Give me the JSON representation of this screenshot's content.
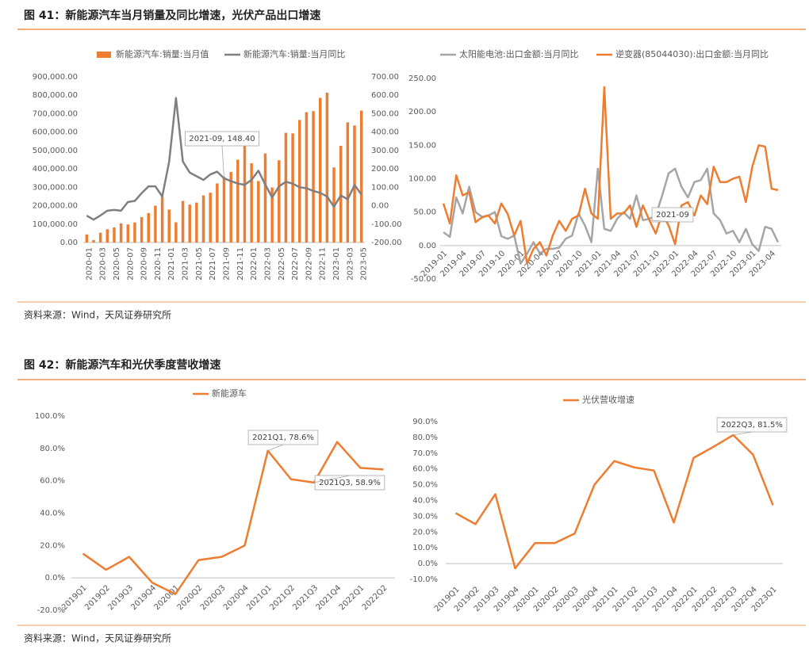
{
  "header": {
    "title": "图 41：新能源汽车当月销量及同比增速，光伏产品出口增速",
    "source": "资料来源：Wind，天风证券研究所"
  },
  "header2": {
    "title": "图 42：新能源汽车和光伏季度营收增速",
    "source": "资料来源：Wind，天风证券研究所"
  },
  "chart_data": [
    {
      "type": "bar",
      "categories": [
        "2020-01",
        null,
        "2020-03",
        null,
        "2020-05",
        null,
        "2020-07",
        null,
        "2020-09",
        null,
        "2020-11",
        null,
        "2021-01",
        null,
        "2021-03",
        null,
        "2021-05",
        null,
        "2021-07",
        null,
        "2021-09",
        null,
        "2021-11",
        null,
        "2022-01",
        null,
        "2022-03",
        null,
        "2022-05",
        null,
        "2022-07",
        null,
        "2022-09",
        null,
        "2022-11",
        null,
        "2023-01",
        null,
        "2023-03",
        null,
        "2023-05"
      ],
      "series": [
        {
          "name": "新能源汽车:销量:当月值",
          "type": "bar",
          "color": "#ED7D31",
          "values": [
            44000,
            13000,
            53000,
            72000,
            82000,
            104000,
            98000,
            109000,
            138000,
            160000,
            200000,
            248000,
            179000,
            110000,
            226000,
            206000,
            217000,
            256000,
            271000,
            321000,
            357000,
            383000,
            450000,
            531000,
            431000,
            334000,
            484000,
            299000,
            447000,
            596000,
            593000,
            666000,
            708000,
            714000,
            786000,
            814000,
            408000,
            525000,
            653000,
            636000,
            717000
          ]
        },
        {
          "name": "新能源汽车:销量:当月同比",
          "type": "line",
          "axis": "y2",
          "color": "#7F7F7F",
          "values": [
            -54,
            -76,
            -53,
            -27,
            -23,
            -27,
            20,
            26,
            68,
            105,
            105,
            50,
            238,
            585,
            240,
            180,
            160,
            140,
            170,
            185,
            148.4,
            134,
            120,
            114,
            140,
            190,
            115,
            45,
            105,
            130,
            120,
            100,
            95,
            80,
            70,
            50,
            -6,
            56,
            35,
            112,
            61
          ]
        }
      ],
      "ylim": [
        0,
        900000
      ],
      "yticks": [
        {
          "value": 0,
          "label": "0.00"
        },
        {
          "value": 100000,
          "label": "100,000.00"
        },
        {
          "value": 200000,
          "label": "200,000.00"
        },
        {
          "value": 300000,
          "label": "300,000.00"
        },
        {
          "value": 400000,
          "label": "400,000.00"
        },
        {
          "value": 500000,
          "label": "500,000.00"
        },
        {
          "value": 600000,
          "label": "600,000.00"
        },
        {
          "value": 700000,
          "label": "700,000.00"
        },
        {
          "value": 800000,
          "label": "800,000.00"
        },
        {
          "value": 900000,
          "label": "900,000.00"
        }
      ],
      "y2lim": [
        -200,
        700
      ],
      "y2ticks": [
        {
          "value": -200,
          "label": "-200.00"
        },
        {
          "value": -100,
          "label": "-100.00"
        },
        {
          "value": 0,
          "label": "0.00"
        },
        {
          "value": 100,
          "label": "100.00"
        },
        {
          "value": 200,
          "label": "200.00"
        },
        {
          "value": 300,
          "label": "300.00"
        },
        {
          "value": 400,
          "label": "400.00"
        },
        {
          "value": 500,
          "label": "500.00"
        },
        {
          "value": 600,
          "label": "600.00"
        },
        {
          "value": 700,
          "label": "700.00"
        }
      ],
      "annotations": [
        "2021-09, 148.40"
      ],
      "legend": "top"
    },
    {
      "type": "line",
      "categories": [
        "2019-01",
        null,
        null,
        "2019-04",
        null,
        null,
        "2019-07",
        null,
        null,
        "2019-10",
        null,
        null,
        "2020-01",
        null,
        null,
        "2020-04",
        null,
        null,
        "2020-07",
        null,
        null,
        "2020-10",
        null,
        null,
        "2021-01",
        null,
        null,
        "2021-04",
        null,
        null,
        "2021-07",
        null,
        null,
        "2021-10",
        null,
        null,
        "2022-01",
        null,
        null,
        "2022-04",
        null,
        null,
        "2022-07",
        null,
        null,
        "2022-10",
        null,
        null,
        "2023-01",
        null,
        null,
        "2023-04",
        null
      ],
      "series": [
        {
          "name": "太阳能电池:出口金额:当月同比",
          "color": "#A5A5A5",
          "values": [
            20,
            13,
            72,
            48,
            88,
            50,
            43,
            45,
            50,
            14,
            10,
            15,
            -27,
            -12,
            5,
            -12,
            -5,
            -5,
            -3,
            10,
            15,
            48,
            30,
            5,
            115,
            25,
            22,
            40,
            50,
            40,
            75,
            38,
            40,
            45,
            75,
            108,
            115,
            88,
            72,
            95,
            98,
            115,
            48,
            38,
            18,
            22,
            5,
            25,
            2,
            -8,
            28,
            25,
            5
          ]
        },
        {
          "name": "逆变器(85044030):出口金额:当月同比",
          "color": "#ED7D31",
          "values": [
            63,
            33,
            105,
            75,
            80,
            35,
            42,
            45,
            33,
            63,
            47,
            15,
            37,
            -27,
            -5,
            5,
            -15,
            15,
            37,
            22,
            40,
            45,
            85,
            48,
            40,
            237,
            40,
            48,
            48,
            60,
            28,
            60,
            38,
            18,
            48,
            30,
            2,
            60,
            65,
            45,
            75,
            62,
            118,
            95,
            95,
            100,
            103,
            65,
            118,
            150,
            148,
            85,
            83
          ]
        }
      ],
      "ylim": [
        -50,
        250
      ],
      "yticks": [
        {
          "value": -50,
          "label": "-50.00"
        },
        {
          "value": 0,
          "label": "0.00"
        },
        {
          "value": 50,
          "label": "50.00"
        },
        {
          "value": 100,
          "label": "100.00"
        },
        {
          "value": 150,
          "label": "150.00"
        },
        {
          "value": 200,
          "label": "200.00"
        },
        {
          "value": 250,
          "label": "250.00"
        }
      ],
      "annotations": [
        "2021-09"
      ],
      "legend": "top"
    },
    {
      "type": "line",
      "categories": [
        "2019Q1",
        "2019Q2",
        "2019Q3",
        "2019Q4",
        "2020Q1",
        "2020Q2",
        "2020Q3",
        "2020Q4",
        "2021Q1",
        "2021Q2",
        "2021Q3",
        "2021Q4",
        "2022Q1",
        "2022Q2"
      ],
      "series": [
        {
          "name": "新能源车",
          "color": "#ED7D31",
          "values": [
            15,
            5,
            13,
            -3,
            -10,
            11,
            13,
            20,
            78.6,
            61,
            58.9,
            84,
            68,
            67
          ]
        }
      ],
      "ylim": [
        -20,
        100
      ],
      "yticks": [
        {
          "value": -20,
          "label": "-20.0%"
        },
        {
          "value": 0,
          "label": "0.0%"
        },
        {
          "value": 20,
          "label": "20.0%"
        },
        {
          "value": 40,
          "label": "40.0%"
        },
        {
          "value": 60,
          "label": "60.0%"
        },
        {
          "value": 80,
          "label": "80.0%"
        },
        {
          "value": 100,
          "label": "100.0%"
        }
      ],
      "annotations": [
        "2021Q1, 78.6%",
        "2021Q3, 58.9%"
      ],
      "legend": "top"
    },
    {
      "type": "line",
      "categories": [
        "2019Q1",
        "2019Q2",
        "2019Q3",
        "2019Q4",
        "2020Q1",
        "2020Q2",
        "2020Q3",
        "2020Q4",
        "2021Q1",
        "2021Q2",
        "2021Q3",
        "2021Q4",
        "2022Q1",
        "2022Q2",
        "2022Q3",
        "2022Q4",
        "2023Q1"
      ],
      "series": [
        {
          "name": "光伏营收增速",
          "color": "#ED7D31",
          "values": [
            32,
            25,
            44,
            -3,
            13,
            13,
            19,
            50,
            65,
            61,
            59,
            26,
            67,
            74,
            81.5,
            69,
            37
          ]
        }
      ],
      "ylim": [
        -10,
        90
      ],
      "yticks": [
        {
          "value": -10,
          "label": "-10.0%"
        },
        {
          "value": 0,
          "label": "0.0%"
        },
        {
          "value": 10,
          "label": "10.0%"
        },
        {
          "value": 20,
          "label": "20.0%"
        },
        {
          "value": 30,
          "label": "30.0%"
        },
        {
          "value": 40,
          "label": "40.0%"
        },
        {
          "value": 50,
          "label": "50.0%"
        },
        {
          "value": 60,
          "label": "60.0%"
        },
        {
          "value": 70,
          "label": "70.0%"
        },
        {
          "value": 80,
          "label": "80.0%"
        },
        {
          "value": 90,
          "label": "90.0%"
        }
      ],
      "annotations": [
        "2022Q3, 81.5%"
      ],
      "legend": "top"
    }
  ]
}
